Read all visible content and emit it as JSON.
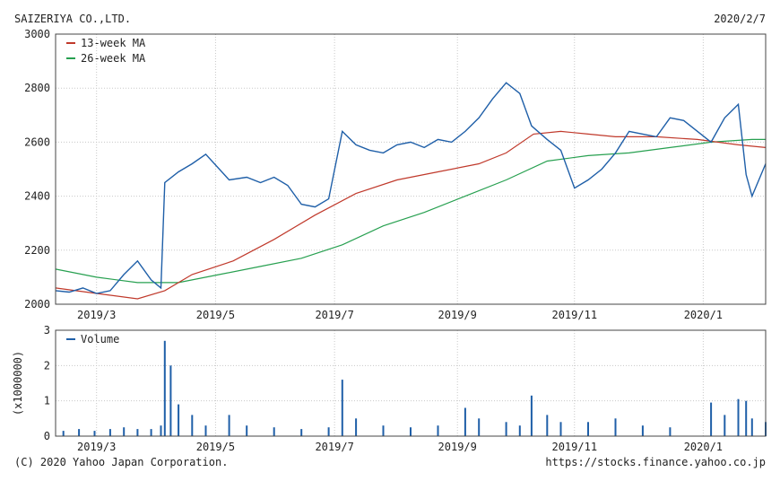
{
  "header": {
    "company": "SAIZERIYA CO.,LTD.",
    "date": "2020/2/7"
  },
  "footer": {
    "copyright": "(C) 2020 Yahoo Japan Corporation.",
    "url": "https://stocks.finance.yahoo.co.jp"
  },
  "colors": {
    "price": "#1f5fa8",
    "ma13": "#c0392b",
    "ma26": "#27a050",
    "volume": "#1f5fa8",
    "grid": "#c8c8c8",
    "frame": "#444444"
  },
  "chart_data": [
    {
      "type": "line",
      "title": "",
      "legend": [
        "13-week MA",
        "26-week MA"
      ],
      "legend_position": "top-left",
      "grid": true,
      "x_range": [
        "2019-02-08",
        "2020-02-07"
      ],
      "x_ticks": [
        {
          "date": "2019-03-01",
          "label": "2019/3"
        },
        {
          "date": "2019-05-01",
          "label": "2019/5"
        },
        {
          "date": "2019-07-01",
          "label": "2019/7"
        },
        {
          "date": "2019-09-02",
          "label": "2019/9"
        },
        {
          "date": "2019-11-01",
          "label": "2019/11"
        },
        {
          "date": "2020-01-06",
          "label": "2020/1"
        }
      ],
      "ylim": [
        2000,
        3000
      ],
      "y_ticks": [
        2000,
        2200,
        2400,
        2600,
        2800,
        3000
      ],
      "series": [
        {
          "key": "price",
          "points": [
            [
              "2019-02-08",
              2050
            ],
            [
              "2019-02-15",
              2045
            ],
            [
              "2019-02-22",
              2060
            ],
            [
              "2019-03-01",
              2040
            ],
            [
              "2019-03-08",
              2050
            ],
            [
              "2019-03-15",
              2110
            ],
            [
              "2019-03-22",
              2160
            ],
            [
              "2019-03-29",
              2090
            ],
            [
              "2019-04-03",
              2060
            ],
            [
              "2019-04-05",
              2450
            ],
            [
              "2019-04-12",
              2490
            ],
            [
              "2019-04-19",
              2520
            ],
            [
              "2019-04-26",
              2555
            ],
            [
              "2019-05-08",
              2460
            ],
            [
              "2019-05-17",
              2470
            ],
            [
              "2019-05-24",
              2450
            ],
            [
              "2019-05-31",
              2470
            ],
            [
              "2019-06-07",
              2440
            ],
            [
              "2019-06-14",
              2370
            ],
            [
              "2019-06-21",
              2360
            ],
            [
              "2019-06-28",
              2390
            ],
            [
              "2019-07-05",
              2640
            ],
            [
              "2019-07-12",
              2590
            ],
            [
              "2019-07-19",
              2570
            ],
            [
              "2019-07-26",
              2560
            ],
            [
              "2019-08-02",
              2590
            ],
            [
              "2019-08-09",
              2600
            ],
            [
              "2019-08-16",
              2580
            ],
            [
              "2019-08-23",
              2610
            ],
            [
              "2019-08-30",
              2600
            ],
            [
              "2019-09-06",
              2640
            ],
            [
              "2019-09-13",
              2690
            ],
            [
              "2019-09-20",
              2760
            ],
            [
              "2019-09-27",
              2820
            ],
            [
              "2019-10-04",
              2780
            ],
            [
              "2019-10-10",
              2660
            ],
            [
              "2019-10-18",
              2610
            ],
            [
              "2019-10-25",
              2570
            ],
            [
              "2019-11-01",
              2430
            ],
            [
              "2019-11-08",
              2460
            ],
            [
              "2019-11-15",
              2500
            ],
            [
              "2019-11-22",
              2560
            ],
            [
              "2019-11-29",
              2640
            ],
            [
              "2019-12-06",
              2630
            ],
            [
              "2019-12-13",
              2620
            ],
            [
              "2019-12-20",
              2690
            ],
            [
              "2019-12-27",
              2680
            ],
            [
              "2020-01-10",
              2600
            ],
            [
              "2020-01-17",
              2690
            ],
            [
              "2020-01-24",
              2740
            ],
            [
              "2020-01-28",
              2480
            ],
            [
              "2020-01-31",
              2400
            ],
            [
              "2020-02-07",
              2520
            ]
          ]
        },
        {
          "key": "ma13",
          "name": "13-week MA",
          "points": [
            [
              "2019-02-08",
              2060
            ],
            [
              "2019-03-01",
              2040
            ],
            [
              "2019-03-22",
              2020
            ],
            [
              "2019-04-05",
              2050
            ],
            [
              "2019-04-19",
              2110
            ],
            [
              "2019-05-10",
              2160
            ],
            [
              "2019-05-31",
              2240
            ],
            [
              "2019-06-21",
              2330
            ],
            [
              "2019-07-12",
              2410
            ],
            [
              "2019-08-02",
              2460
            ],
            [
              "2019-08-23",
              2490
            ],
            [
              "2019-09-13",
              2520
            ],
            [
              "2019-09-27",
              2560
            ],
            [
              "2019-10-11",
              2630
            ],
            [
              "2019-10-25",
              2640
            ],
            [
              "2019-11-08",
              2630
            ],
            [
              "2019-11-22",
              2620
            ],
            [
              "2019-12-13",
              2620
            ],
            [
              "2020-01-03",
              2610
            ],
            [
              "2020-01-24",
              2590
            ],
            [
              "2020-02-07",
              2580
            ]
          ]
        },
        {
          "key": "ma26",
          "name": "26-week MA",
          "points": [
            [
              "2019-02-08",
              2130
            ],
            [
              "2019-03-01",
              2100
            ],
            [
              "2019-03-22",
              2080
            ],
            [
              "2019-04-12",
              2080
            ],
            [
              "2019-05-03",
              2110
            ],
            [
              "2019-05-24",
              2140
            ],
            [
              "2019-06-14",
              2170
            ],
            [
              "2019-07-05",
              2220
            ],
            [
              "2019-07-26",
              2290
            ],
            [
              "2019-08-16",
              2340
            ],
            [
              "2019-09-06",
              2400
            ],
            [
              "2019-09-27",
              2460
            ],
            [
              "2019-10-18",
              2530
            ],
            [
              "2019-11-08",
              2550
            ],
            [
              "2019-11-29",
              2560
            ],
            [
              "2019-12-20",
              2580
            ],
            [
              "2020-01-10",
              2600
            ],
            [
              "2020-01-31",
              2610
            ],
            [
              "2020-02-07",
              2610
            ]
          ]
        }
      ]
    },
    {
      "type": "bar",
      "legend": [
        "Volume"
      ],
      "legend_position": "top-left",
      "ylabel": "(x1000000)",
      "ylim": [
        0,
        3
      ],
      "y_ticks": [
        0,
        1,
        2,
        3
      ],
      "x_range": [
        "2019-02-08",
        "2020-02-07"
      ],
      "series": [
        {
          "key": "volume",
          "name": "Volume",
          "points": [
            [
              "2019-02-12",
              0.15
            ],
            [
              "2019-02-20",
              0.2
            ],
            [
              "2019-02-28",
              0.15
            ],
            [
              "2019-03-08",
              0.2
            ],
            [
              "2019-03-15",
              0.25
            ],
            [
              "2019-03-22",
              0.2
            ],
            [
              "2019-03-29",
              0.2
            ],
            [
              "2019-04-03",
              0.3
            ],
            [
              "2019-04-05",
              2.7
            ],
            [
              "2019-04-08",
              2.0
            ],
            [
              "2019-04-12",
              0.9
            ],
            [
              "2019-04-19",
              0.6
            ],
            [
              "2019-04-26",
              0.3
            ],
            [
              "2019-05-08",
              0.6
            ],
            [
              "2019-05-17",
              0.3
            ],
            [
              "2019-05-31",
              0.25
            ],
            [
              "2019-06-14",
              0.2
            ],
            [
              "2019-06-28",
              0.25
            ],
            [
              "2019-07-05",
              1.6
            ],
            [
              "2019-07-12",
              0.5
            ],
            [
              "2019-07-26",
              0.3
            ],
            [
              "2019-08-09",
              0.25
            ],
            [
              "2019-08-23",
              0.3
            ],
            [
              "2019-09-06",
              0.8
            ],
            [
              "2019-09-13",
              0.5
            ],
            [
              "2019-09-27",
              0.4
            ],
            [
              "2019-10-04",
              0.3
            ],
            [
              "2019-10-10",
              1.15
            ],
            [
              "2019-10-18",
              0.6
            ],
            [
              "2019-10-25",
              0.4
            ],
            [
              "2019-11-08",
              0.4
            ],
            [
              "2019-11-22",
              0.5
            ],
            [
              "2019-12-06",
              0.3
            ],
            [
              "2019-12-20",
              0.25
            ],
            [
              "2020-01-10",
              0.95
            ],
            [
              "2020-01-17",
              0.6
            ],
            [
              "2020-01-24",
              1.05
            ],
            [
              "2020-01-28",
              1.0
            ],
            [
              "2020-01-31",
              0.5
            ],
            [
              "2020-02-07",
              0.4
            ]
          ]
        }
      ]
    }
  ]
}
